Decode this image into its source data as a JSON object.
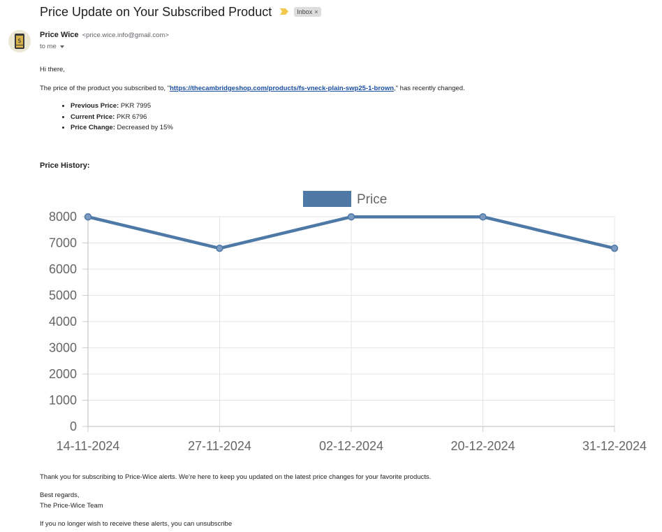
{
  "email": {
    "subject": "Price Update on Your Subscribed Product",
    "label": "Inbox",
    "label_close": "×",
    "sender_name": "Price Wice",
    "sender_email": "<price.wice.info@gmail.com>",
    "recipient": "to me",
    "greeting": "Hi there,",
    "intro_before": "The price of the product you subscribed to, \"",
    "product_url": "https://thecambridgeshop.com/products/fs-vneck-plain-swp25-1-brown",
    "intro_after": ",\" has recently changed.",
    "details": [
      {
        "label": "Previous Price:",
        "value": "PKR 7995"
      },
      {
        "label": "Current Price:",
        "value": "PKR 6796"
      },
      {
        "label": "Price Change:",
        "value": "Decreased by 15%"
      }
    ],
    "history_title": "Price History:",
    "thanks": "Thank you for subscribing to Price-Wice alerts. We're here to keep you updated on the latest price changes for your favorite products.",
    "regards": "Best regards,",
    "team": "The Price-Wice Team",
    "unsubscribe": "If you no longer wish to receive these alerts, you can unsubscribe"
  },
  "colors": {
    "series": "#4e79a7",
    "grid": "#e5e5e5",
    "axis_text": "#666666",
    "important_marker": "#f2c94c",
    "link": "#1a4fa0"
  },
  "chart_data": {
    "type": "line",
    "categories": [
      "14-11-2024",
      "27-11-2024",
      "02-12-2024",
      "20-12-2024",
      "31-12-2024"
    ],
    "series": [
      {
        "name": "Price",
        "values": [
          7995,
          6796,
          7995,
          7995,
          6796
        ]
      }
    ],
    "yticks": [
      0,
      1000,
      2000,
      3000,
      4000,
      5000,
      6000,
      7000,
      8000
    ],
    "ylim": [
      0,
      8000
    ],
    "grid": true,
    "legend": "top-center"
  }
}
